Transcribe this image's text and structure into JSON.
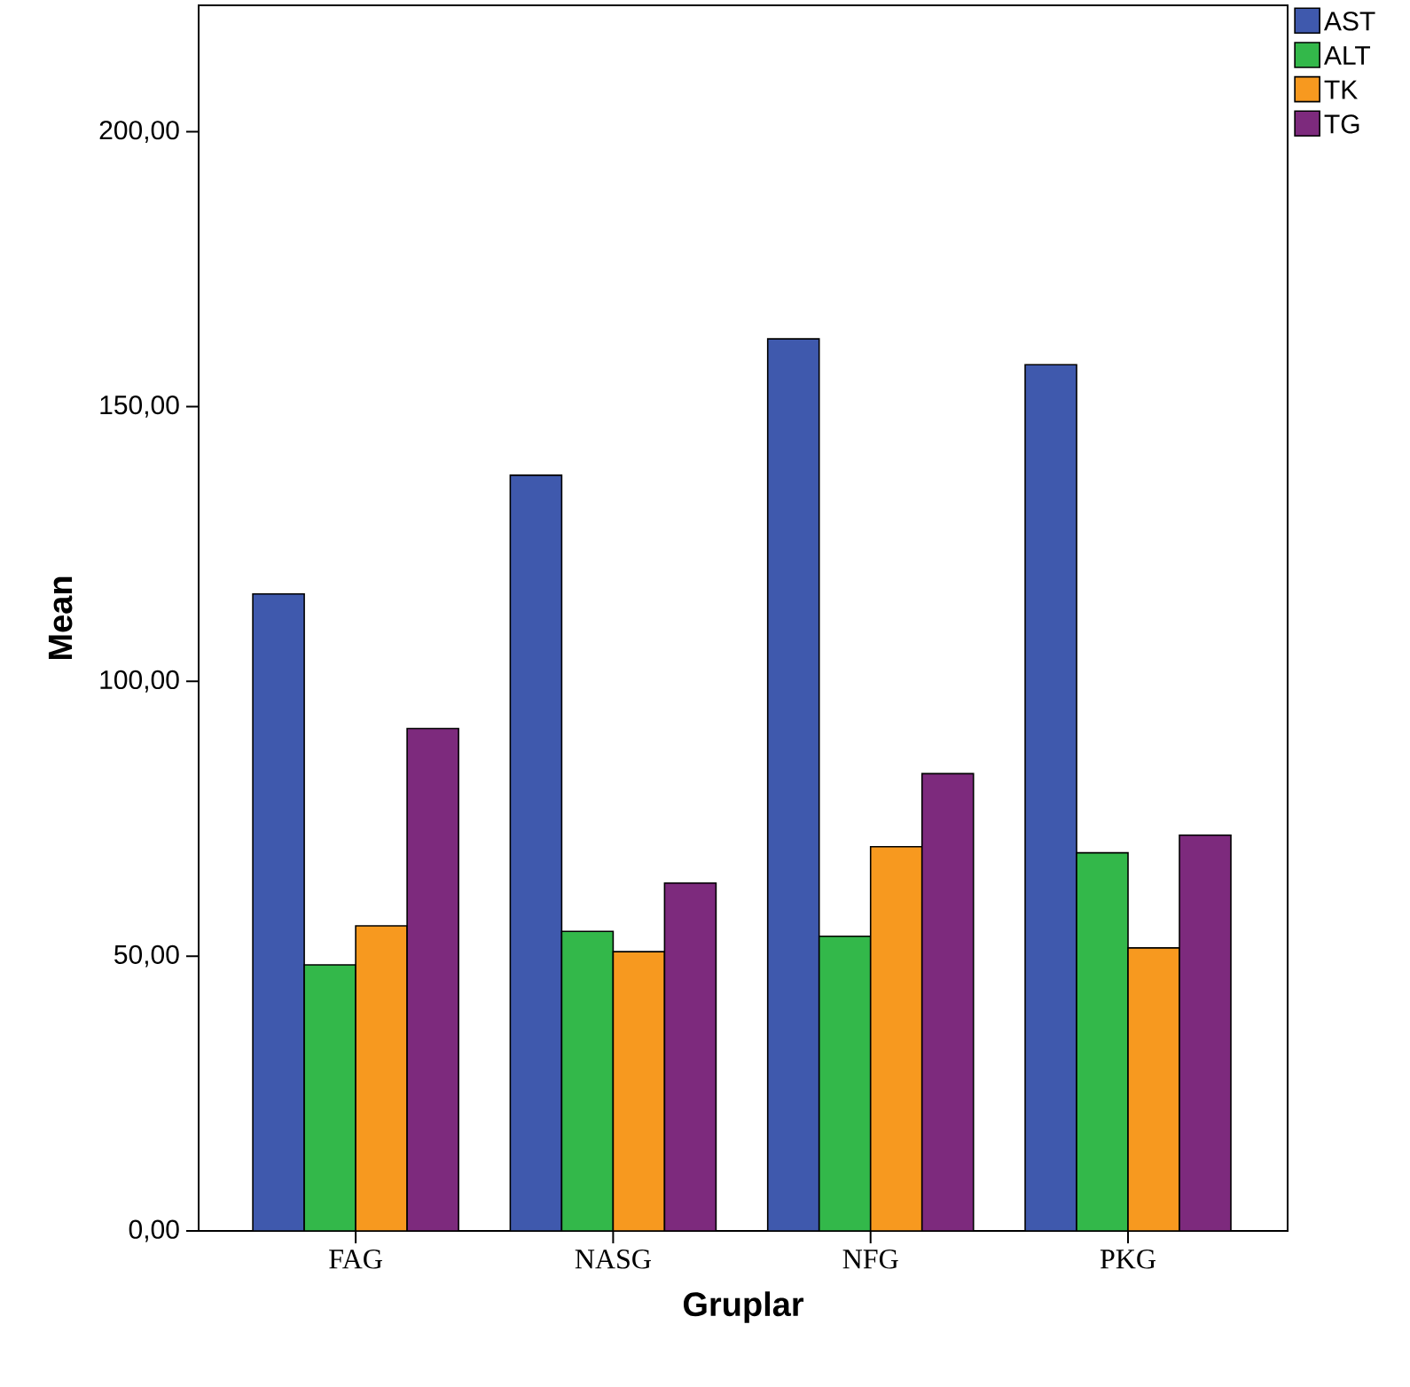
{
  "chart_data": {
    "type": "bar",
    "xlabel": "Gruplar",
    "ylabel": "Mean",
    "categories": [
      "FAG",
      "NASG",
      "NFG",
      "PKG"
    ],
    "series": [
      {
        "name": "AST",
        "color": "#3f59ad",
        "values": [
          115.9,
          137.5,
          162.3,
          157.6
        ]
      },
      {
        "name": "ALT",
        "color": "#33b84a",
        "values": [
          48.4,
          54.5,
          53.6,
          68.8
        ]
      },
      {
        "name": "TK",
        "color": "#f7991f",
        "values": [
          55.5,
          50.8,
          69.9,
          51.5
        ]
      },
      {
        "name": "TG",
        "color": "#7d2a7d",
        "values": [
          91.4,
          63.3,
          83.2,
          72.0
        ]
      }
    ],
    "ylim": [
      0,
      223
    ],
    "yticks": [
      {
        "value": 0,
        "label": "0,00"
      },
      {
        "value": 50,
        "label": "50,00"
      },
      {
        "value": 100,
        "label": "100,00"
      },
      {
        "value": 150,
        "label": "150,00"
      },
      {
        "value": 200,
        "label": "200,00"
      }
    ],
    "legend": "top right",
    "grid": false
  }
}
